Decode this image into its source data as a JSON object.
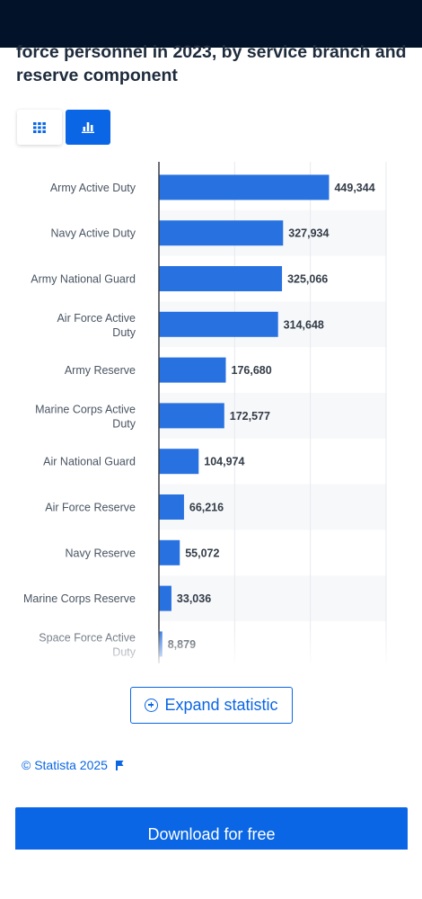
{
  "header": {
    "title_line1": "force personnel in 2023, by service branch and",
    "title_line2": "reserve component"
  },
  "toggle": {
    "table_icon": "grid-icon",
    "chart_icon": "bar-chart-icon"
  },
  "colors": {
    "bar": "#2771e0",
    "accent": "#0a66e4",
    "header_bg": "#021228"
  },
  "chart_data": {
    "type": "bar",
    "orientation": "horizontal",
    "categories": [
      "Army Active Duty",
      "Navy Active Duty",
      "Army National Guard",
      "Air Force Active Duty",
      "Army Reserve",
      "Marine Corps Active Duty",
      "Air National Guard",
      "Air Force Reserve",
      "Navy Reserve",
      "Marine Corps Reserve",
      "Space Force Active Duty"
    ],
    "values": [
      449344,
      327934,
      325066,
      314648,
      176680,
      172577,
      104974,
      66216,
      55072,
      33036,
      8879
    ],
    "value_labels": [
      "449,344",
      "327,934",
      "325,066",
      "314,648",
      "176,680",
      "172,577",
      "104,974",
      "66,216",
      "55,072",
      "33,036",
      "8,879"
    ],
    "xlim": [
      0,
      600000
    ],
    "grid": true,
    "legend": "none"
  },
  "actions": {
    "expand_label": "Expand statistic",
    "source_label": "© Statista 2025",
    "download_label": "Download for free"
  }
}
